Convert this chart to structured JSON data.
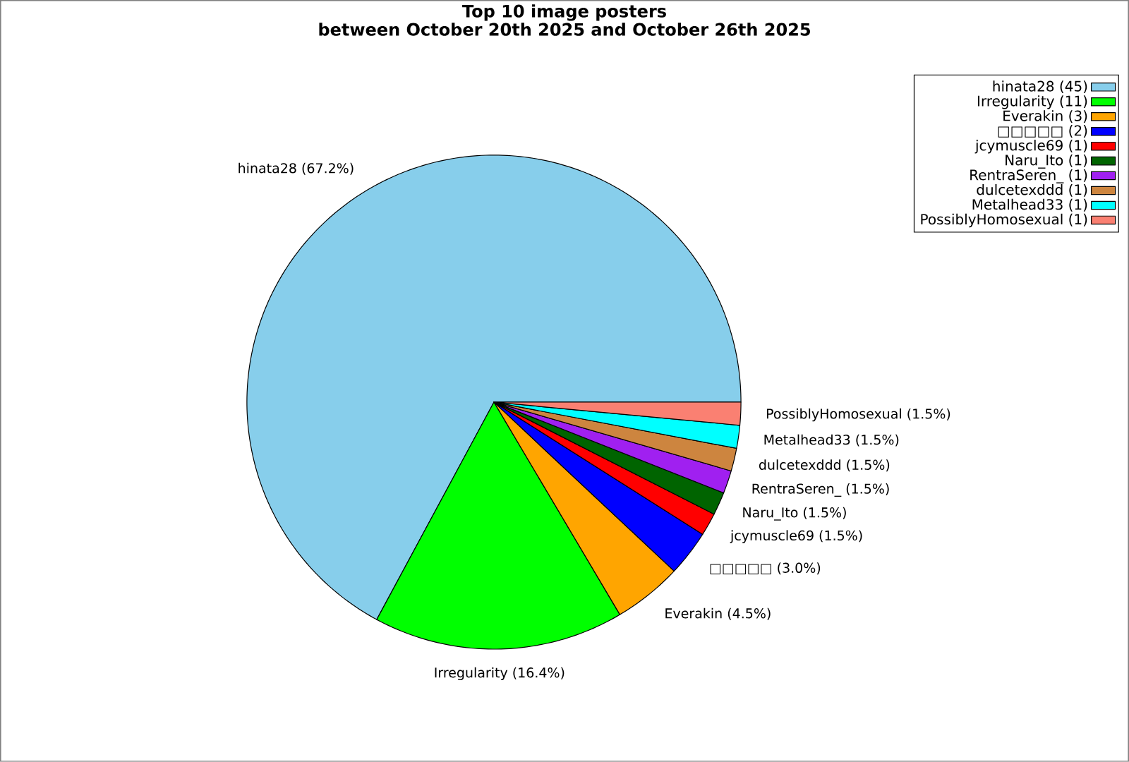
{
  "chart_data": {
    "type": "pie",
    "title": "Top 10 image posters",
    "subtitle": "between October 20th 2025 and October 26th 2025",
    "categories": [
      "hinata28",
      "Irregularity",
      "Everakin",
      "□□□□□",
      "jcymuscle69",
      "Naru_Ito",
      "RentraSeren_",
      "dulcetexddd",
      "Metalhead33",
      "PossiblyHomosexual"
    ],
    "values": [
      67.2,
      16.4,
      4.5,
      3.0,
      1.5,
      1.5,
      1.5,
      1.5,
      1.5,
      1.5
    ],
    "value_labels": [
      "(67.2%)",
      "(16.4%)",
      "(4.5%)",
      "(3.0%)",
      "(1.5%)",
      "(1.5%)",
      "(1.5%)",
      "(1.5%)",
      "(1.5%)",
      "(1.5%)"
    ],
    "annotations": [
      "(45)",
      "(11)",
      "(3)",
      "(2)",
      "(1)",
      "(1)",
      "(1)",
      "(1)",
      "(1)",
      "(1)"
    ],
    "colors": [
      "#87ceeb",
      "#00ff00",
      "#ffa500",
      "#0000ff",
      "#ff0000",
      "#006400",
      "#a020f0",
      "#cd853f",
      "#00ffff",
      "#fa8072"
    ],
    "legend": "top right"
  }
}
